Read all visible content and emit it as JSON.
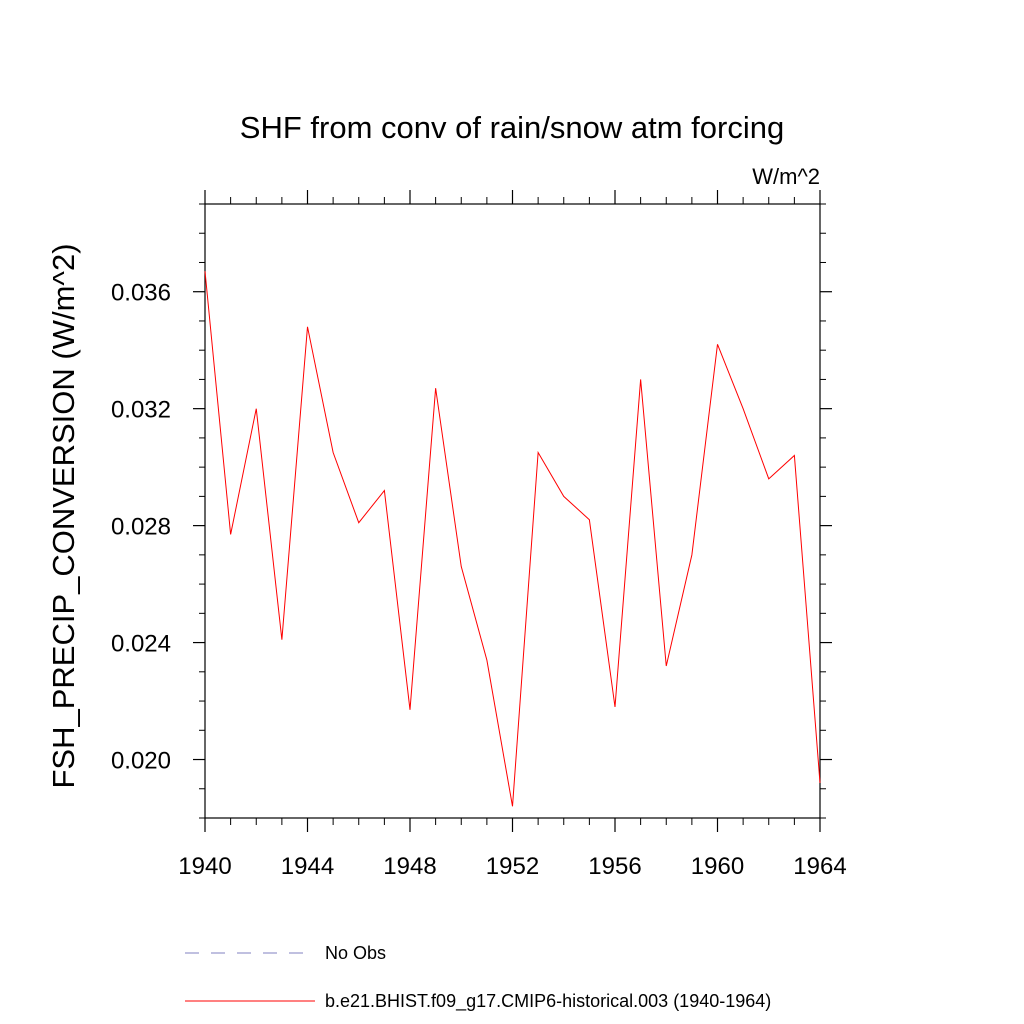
{
  "chart_data": {
    "type": "line",
    "title": "SHF from conv of rain/snow atm forcing",
    "units": "W/m^2",
    "xlabel": "",
    "ylabel": "FSH_PRECIP_CONVERSION  (W/m^2)",
    "xlim": [
      1940,
      1964
    ],
    "ylim": [
      0.018,
      0.039
    ],
    "xticks": [
      1940,
      1944,
      1948,
      1952,
      1956,
      1960,
      1964
    ],
    "xtick_labels": [
      "1940",
      "1944",
      "1948",
      "1952",
      "1956",
      "1960",
      "1964"
    ],
    "yticks": [
      0.02,
      0.024,
      0.028,
      0.032,
      0.036
    ],
    "ytick_labels": [
      "0.020",
      "0.024",
      "0.028",
      "0.032",
      "0.036"
    ],
    "grid": false,
    "legend_position": "bottom",
    "series": [
      {
        "name": "b.e21.BHIST.f09_g17.CMIP6-historical.003 (1940-1964)",
        "color": "#ff0000",
        "style": "solid",
        "x": [
          1940,
          1941,
          1942,
          1943,
          1944,
          1945,
          1946,
          1947,
          1948,
          1949,
          1950,
          1951,
          1952,
          1953,
          1954,
          1955,
          1956,
          1957,
          1958,
          1959,
          1960,
          1961,
          1962,
          1963,
          1964
        ],
        "y": [
          0.0367,
          0.0277,
          0.032,
          0.0241,
          0.0348,
          0.0305,
          0.0281,
          0.0292,
          0.0217,
          0.0327,
          0.0266,
          0.0234,
          0.0184,
          0.0305,
          0.029,
          0.0282,
          0.0218,
          0.033,
          0.0232,
          0.027,
          0.0342,
          0.032,
          0.0296,
          0.0304,
          0.0192
        ]
      }
    ],
    "legend": [
      {
        "label": "No Obs",
        "color": "#8080c0",
        "style": "dashed"
      },
      {
        "label": "b.e21.BHIST.f09_g17.CMIP6-historical.003 (1940-1964)",
        "color": "#ff0000",
        "style": "solid"
      }
    ]
  }
}
